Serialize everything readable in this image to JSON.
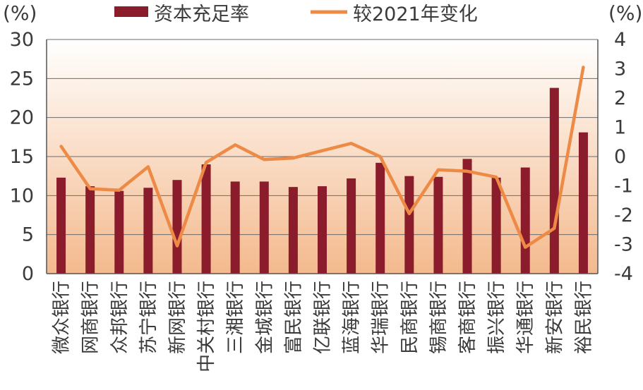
{
  "chart_data": {
    "type": "bar",
    "legend_position": "top",
    "grid": true,
    "categories": [
      "微众银行",
      "网商银行",
      "众邦银行",
      "苏宁银行",
      "新网银行",
      "中关村银行",
      "三湘银行",
      "金城银行",
      "富民银行",
      "亿联银行",
      "蓝海银行",
      "华瑞银行",
      "民商银行",
      "锡商银行",
      "客商银行",
      "振兴银行",
      "华通银行",
      "新安银行",
      "裕民银行"
    ],
    "series": [
      {
        "name": "资本充足率",
        "type": "bar",
        "axis": "left",
        "color": "#8b1c2b",
        "values": [
          12.3,
          11.2,
          10.6,
          11.0,
          12.0,
          14.0,
          11.8,
          11.8,
          11.1,
          11.2,
          12.2,
          14.2,
          12.5,
          12.4,
          14.7,
          12.3,
          13.6,
          23.8,
          18.1
        ]
      },
      {
        "name": "较2021年变化",
        "type": "line",
        "axis": "right",
        "color": "#ed8a45",
        "values": [
          0.35,
          -1.1,
          -1.15,
          -0.35,
          -3.05,
          -0.2,
          0.4,
          -0.1,
          -0.05,
          0.2,
          0.45,
          0.0,
          -1.95,
          -0.45,
          -0.5,
          -0.7,
          -3.1,
          -2.45,
          3.05
        ]
      }
    ],
    "y_left": {
      "label": "(%)",
      "ylim": [
        0,
        30
      ],
      "ticks": [
        "0",
        "5",
        "10",
        "15",
        "20",
        "25",
        "30"
      ]
    },
    "y_right": {
      "label": "(%)",
      "ylim": [
        -4,
        4
      ],
      "ticks": [
        "-4",
        "-3",
        "-2",
        "-1",
        "0",
        "1",
        "2",
        "3",
        "4"
      ]
    }
  }
}
